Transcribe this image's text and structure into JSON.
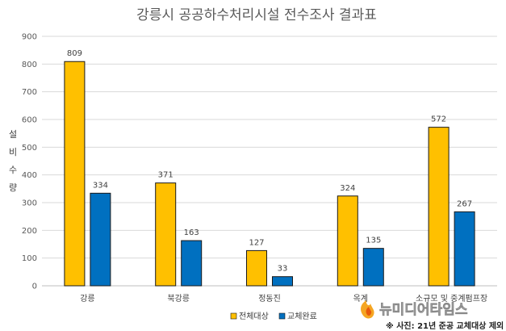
{
  "chart_data": {
    "type": "bar",
    "title": "강릉시 공공하수처리시설 전수조사 결과표",
    "ylabel": "설비수량",
    "xlabel": "",
    "ylim": [
      0,
      900
    ],
    "yticks": [
      0,
      100,
      200,
      300,
      400,
      500,
      600,
      700,
      800,
      900
    ],
    "grid": true,
    "legend_position": "bottom",
    "categories": [
      "강릉",
      "북강릉",
      "정동진",
      "옥계",
      "소규모 및 중계펌프장"
    ],
    "series": [
      {
        "name": "전체대상",
        "color": "#FFC000",
        "values": [
          809,
          371,
          127,
          324,
          572
        ]
      },
      {
        "name": "교체완료",
        "color": "#0070C0",
        "values": [
          334,
          163,
          33,
          135,
          267
        ]
      }
    ]
  },
  "watermark": {
    "text": "뉴미디어타임스",
    "icon": "flame-logo-icon",
    "color": "#F5A623"
  },
  "caption": "※ 사진: 21년 준공 교체대상 제외"
}
